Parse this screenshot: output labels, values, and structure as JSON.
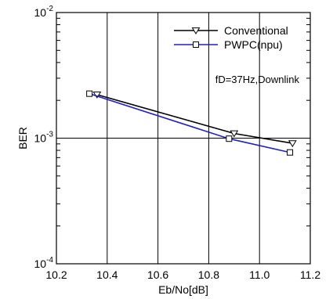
{
  "chart_data": {
    "type": "line",
    "xlabel": "Eb/No[dB]",
    "ylabel": "BER",
    "xlim": [
      10.2,
      11.2
    ],
    "ylim": [
      0.0001,
      0.01
    ],
    "yscale": "log",
    "xticks": [
      "10.2",
      "10.4",
      "10.6",
      "10.8",
      "11.0",
      "11.2"
    ],
    "yticks": [
      {
        "base": "10",
        "exp": "-4",
        "value": 0.0001
      },
      {
        "base": "10",
        "exp": "-3",
        "value": 0.001
      },
      {
        "base": "10",
        "exp": "-2",
        "value": 0.01
      }
    ],
    "grid": true,
    "legend_position": "top-right",
    "annotation": "fD=37Hz,Downlink",
    "series": [
      {
        "name": "Conventional",
        "color": "#000000",
        "marker": "triangle-down",
        "x": [
          10.36,
          10.9,
          11.13
        ],
        "y": [
          0.00222,
          0.00109,
          0.00091
        ]
      },
      {
        "name": "PWPC(npu)",
        "color": "#1f1fc8",
        "marker": "square",
        "x": [
          10.33,
          10.88,
          11.12
        ],
        "y": [
          0.00226,
          0.00099,
          0.00077
        ]
      }
    ]
  }
}
